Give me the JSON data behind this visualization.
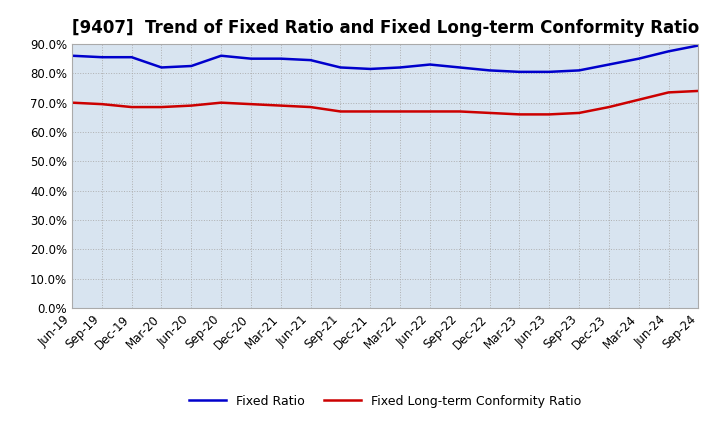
{
  "title": "[9407]  Trend of Fixed Ratio and Fixed Long-term Conformity Ratio",
  "x_labels": [
    "Jun-19",
    "Sep-19",
    "Dec-19",
    "Mar-20",
    "Jun-20",
    "Sep-20",
    "Dec-20",
    "Mar-21",
    "Jun-21",
    "Sep-21",
    "Dec-21",
    "Mar-22",
    "Jun-22",
    "Sep-22",
    "Dec-22",
    "Mar-23",
    "Jun-23",
    "Sep-23",
    "Dec-23",
    "Mar-24",
    "Jun-24",
    "Sep-24"
  ],
  "fixed_ratio": [
    0.86,
    0.855,
    0.855,
    0.82,
    0.825,
    0.86,
    0.85,
    0.85,
    0.845,
    0.82,
    0.815,
    0.82,
    0.83,
    0.82,
    0.81,
    0.805,
    0.805,
    0.81,
    0.83,
    0.85,
    0.875,
    0.895
  ],
  "fixed_lt_ratio": [
    0.7,
    0.695,
    0.685,
    0.685,
    0.69,
    0.7,
    0.695,
    0.69,
    0.685,
    0.67,
    0.67,
    0.67,
    0.67,
    0.67,
    0.665,
    0.66,
    0.66,
    0.665,
    0.685,
    0.71,
    0.735,
    0.74
  ],
  "fixed_ratio_color": "#0000CC",
  "fixed_lt_ratio_color": "#CC0000",
  "ylim": [
    0.0,
    0.9
  ],
  "yticks": [
    0.0,
    0.1,
    0.2,
    0.3,
    0.4,
    0.5,
    0.6,
    0.7,
    0.8,
    0.9
  ],
  "outer_bg_color": "#FFFFFF",
  "plot_bg_color": "#D8E4F0",
  "grid_color": "#AAAAAA",
  "spine_color": "#AAAAAA",
  "legend_fixed_ratio": "Fixed Ratio",
  "legend_fixed_lt_ratio": "Fixed Long-term Conformity Ratio",
  "title_fontsize": 12,
  "tick_fontsize": 8.5,
  "legend_fontsize": 9
}
